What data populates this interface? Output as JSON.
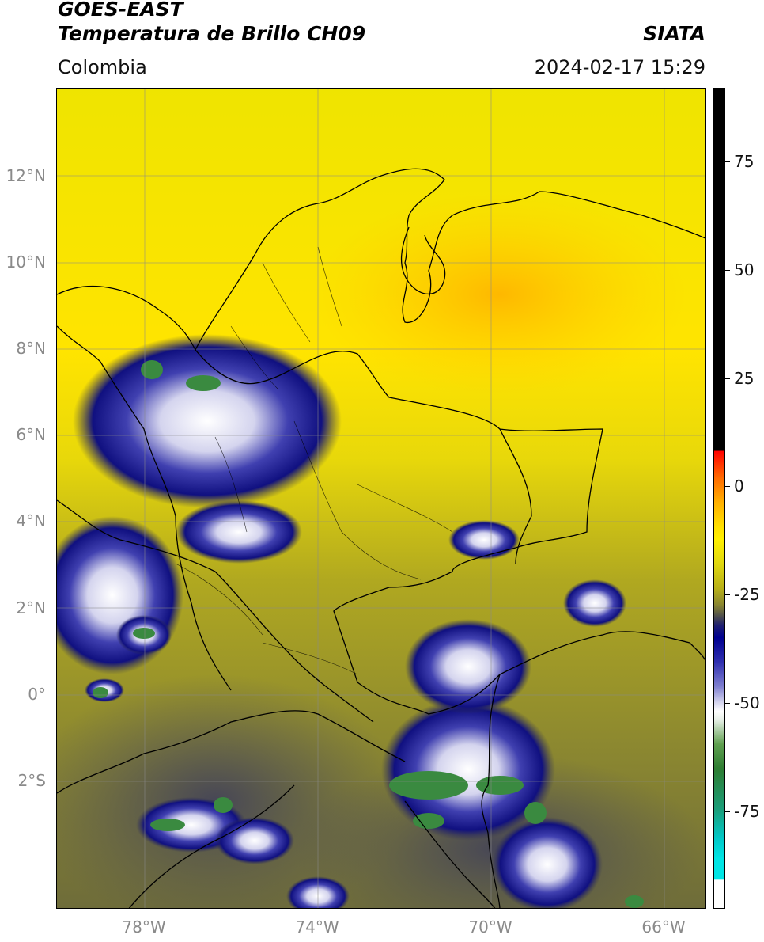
{
  "header": {
    "title_line1": "GOES-EAST",
    "title_line2": "Temperatura de Brillo CH09",
    "brand": "SIATA",
    "region": "Colombia",
    "timestamp": "2024-02-17 15:29"
  },
  "map": {
    "latitude_labels": [
      "12°N",
      "10°N",
      "8°N",
      "6°N",
      "4°N",
      "2°N",
      "0°",
      "2°S"
    ],
    "longitude_labels": [
      "78°W",
      "74°W",
      "70°W",
      "66°W"
    ]
  },
  "colorbar": {
    "labels": [
      "75",
      "50",
      "25",
      "0",
      "-25",
      "-50",
      "-75"
    ],
    "colors": {
      "warm": "#000000",
      "hot": "#ff0000",
      "mid": "#fff000",
      "cool": "#000090",
      "cold": "#2e7d32",
      "coldest": "#00e5e5"
    }
  }
}
